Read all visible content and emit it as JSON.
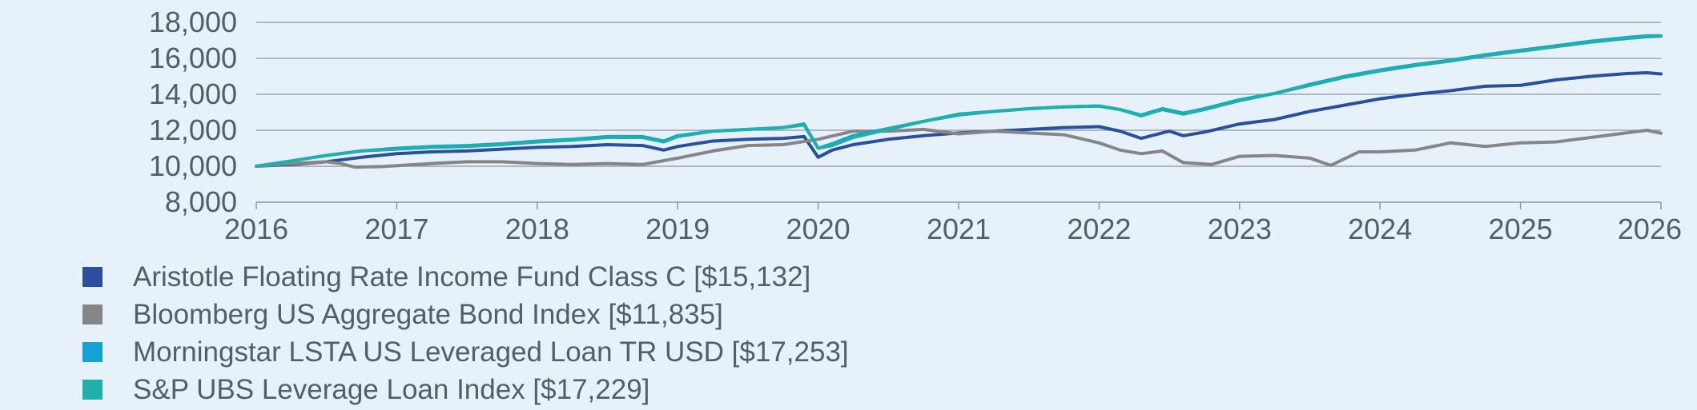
{
  "chart_data": {
    "type": "line",
    "title": "",
    "xlabel": "",
    "ylabel": "",
    "xlim": [
      2016,
      2026
    ],
    "ylim": [
      8000,
      18000
    ],
    "grid": true,
    "legend_position": "bottom",
    "x_ticks": [
      2016,
      2017,
      2018,
      2019,
      2020,
      2021,
      2022,
      2023,
      2024,
      2025,
      2026
    ],
    "x_tick_labels": [
      "2016",
      "2017",
      "2018",
      "2019",
      "2020",
      "2021",
      "2022",
      "2023",
      "2024",
      "2025",
      "2026"
    ],
    "y_ticks": [
      8000,
      10000,
      12000,
      14000,
      16000,
      18000
    ],
    "y_tick_labels": [
      "8,000",
      "10,000",
      "12,000",
      "14,000",
      "16,000",
      "18,000"
    ],
    "series": [
      {
        "name": "Aristotle Floating Rate Income Fund Class C [$15,132]",
        "color": "#2a4f9e",
        "points": [
          [
            2016.0,
            10000
          ],
          [
            2016.25,
            10100
          ],
          [
            2016.5,
            10250
          ],
          [
            2016.75,
            10500
          ],
          [
            2017.0,
            10700
          ],
          [
            2017.25,
            10800
          ],
          [
            2017.5,
            10850
          ],
          [
            2017.75,
            10950
          ],
          [
            2018.0,
            11050
          ],
          [
            2018.25,
            11100
          ],
          [
            2018.5,
            11200
          ],
          [
            2018.75,
            11150
          ],
          [
            2018.9,
            10900
          ],
          [
            2019.0,
            11100
          ],
          [
            2019.25,
            11400
          ],
          [
            2019.5,
            11500
          ],
          [
            2019.75,
            11550
          ],
          [
            2019.9,
            11650
          ],
          [
            2020.0,
            10500
          ],
          [
            2020.1,
            10900
          ],
          [
            2020.25,
            11200
          ],
          [
            2020.5,
            11500
          ],
          [
            2020.75,
            11700
          ],
          [
            2021.0,
            11850
          ],
          [
            2021.25,
            11950
          ],
          [
            2021.5,
            12050
          ],
          [
            2021.75,
            12150
          ],
          [
            2022.0,
            12200
          ],
          [
            2022.15,
            11950
          ],
          [
            2022.3,
            11550
          ],
          [
            2022.5,
            11950
          ],
          [
            2022.6,
            11700
          ],
          [
            2022.75,
            11900
          ],
          [
            2023.0,
            12350
          ],
          [
            2023.25,
            12600
          ],
          [
            2023.5,
            13050
          ],
          [
            2023.75,
            13400
          ],
          [
            2024.0,
            13750
          ],
          [
            2024.25,
            14000
          ],
          [
            2024.5,
            14200
          ],
          [
            2024.75,
            14450
          ],
          [
            2025.0,
            14500
          ],
          [
            2025.25,
            14800
          ],
          [
            2025.5,
            15000
          ],
          [
            2025.75,
            15150
          ],
          [
            2025.9,
            15200
          ],
          [
            2026.0,
            15132
          ]
        ]
      },
      {
        "name": "Bloomberg US Aggregate Bond Index [$11,835]",
        "color": "#868686",
        "points": [
          [
            2016.0,
            10000
          ],
          [
            2016.25,
            10150
          ],
          [
            2016.5,
            10250
          ],
          [
            2016.6,
            10150
          ],
          [
            2016.7,
            9950
          ],
          [
            2016.9,
            9980
          ],
          [
            2017.25,
            10150
          ],
          [
            2017.5,
            10250
          ],
          [
            2017.75,
            10250
          ],
          [
            2018.0,
            10150
          ],
          [
            2018.25,
            10100
          ],
          [
            2018.5,
            10150
          ],
          [
            2018.75,
            10100
          ],
          [
            2019.0,
            10450
          ],
          [
            2019.25,
            10850
          ],
          [
            2019.5,
            11150
          ],
          [
            2019.75,
            11200
          ],
          [
            2020.0,
            11500
          ],
          [
            2020.25,
            11950
          ],
          [
            2020.5,
            11950
          ],
          [
            2020.75,
            12050
          ],
          [
            2021.0,
            11800
          ],
          [
            2021.25,
            11950
          ],
          [
            2021.5,
            11850
          ],
          [
            2021.75,
            11750
          ],
          [
            2022.0,
            11300
          ],
          [
            2022.15,
            10900
          ],
          [
            2022.3,
            10700
          ],
          [
            2022.45,
            10850
          ],
          [
            2022.6,
            10200
          ],
          [
            2022.8,
            10100
          ],
          [
            2023.0,
            10550
          ],
          [
            2023.25,
            10600
          ],
          [
            2023.5,
            10450
          ],
          [
            2023.65,
            10050
          ],
          [
            2023.85,
            10800
          ],
          [
            2024.0,
            10800
          ],
          [
            2024.25,
            10900
          ],
          [
            2024.5,
            11300
          ],
          [
            2024.75,
            11100
          ],
          [
            2025.0,
            11300
          ],
          [
            2025.25,
            11350
          ],
          [
            2025.5,
            11600
          ],
          [
            2025.75,
            11850
          ],
          [
            2025.9,
            12000
          ],
          [
            2026.0,
            11835
          ]
        ]
      },
      {
        "name": "Morningstar LSTA US Leveraged Loan TR USD [$17,253]",
        "color": "#14a1d6",
        "points": [
          [
            2016.0,
            10000
          ],
          [
            2016.25,
            10300
          ],
          [
            2016.5,
            10600
          ],
          [
            2016.75,
            10850
          ],
          [
            2017.0,
            11000
          ],
          [
            2017.25,
            11100
          ],
          [
            2017.5,
            11150
          ],
          [
            2017.75,
            11250
          ],
          [
            2018.0,
            11400
          ],
          [
            2018.25,
            11500
          ],
          [
            2018.5,
            11650
          ],
          [
            2018.75,
            11650
          ],
          [
            2018.9,
            11400
          ],
          [
            2019.0,
            11700
          ],
          [
            2019.25,
            11950
          ],
          [
            2019.5,
            12050
          ],
          [
            2019.75,
            12150
          ],
          [
            2019.9,
            12350
          ],
          [
            2020.0,
            11000
          ],
          [
            2020.1,
            11250
          ],
          [
            2020.25,
            11700
          ],
          [
            2020.5,
            12100
          ],
          [
            2020.75,
            12500
          ],
          [
            2021.0,
            12850
          ],
          [
            2021.25,
            13050
          ],
          [
            2021.5,
            13200
          ],
          [
            2021.75,
            13300
          ],
          [
            2022.0,
            13350
          ],
          [
            2022.15,
            13150
          ],
          [
            2022.3,
            12850
          ],
          [
            2022.45,
            13200
          ],
          [
            2022.6,
            12950
          ],
          [
            2022.75,
            13200
          ],
          [
            2023.0,
            13700
          ],
          [
            2023.25,
            14050
          ],
          [
            2023.5,
            14550
          ],
          [
            2023.75,
            15000
          ],
          [
            2024.0,
            15350
          ],
          [
            2024.25,
            15650
          ],
          [
            2024.5,
            15900
          ],
          [
            2024.75,
            16200
          ],
          [
            2025.0,
            16450
          ],
          [
            2025.25,
            16700
          ],
          [
            2025.5,
            16950
          ],
          [
            2025.75,
            17150
          ],
          [
            2025.9,
            17250
          ],
          [
            2026.0,
            17253
          ]
        ]
      },
      {
        "name": "S&P UBS Leverage Loan Index [$17,229]",
        "color": "#1fb0ae",
        "points": [
          [
            2016.0,
            10000
          ],
          [
            2016.25,
            10300
          ],
          [
            2016.5,
            10600
          ],
          [
            2016.75,
            10850
          ],
          [
            2017.0,
            10950
          ],
          [
            2017.25,
            11050
          ],
          [
            2017.5,
            11100
          ],
          [
            2017.75,
            11200
          ],
          [
            2018.0,
            11350
          ],
          [
            2018.25,
            11450
          ],
          [
            2018.5,
            11600
          ],
          [
            2018.75,
            11600
          ],
          [
            2018.9,
            11350
          ],
          [
            2019.0,
            11650
          ],
          [
            2019.25,
            11950
          ],
          [
            2019.5,
            12050
          ],
          [
            2019.75,
            12150
          ],
          [
            2019.9,
            12300
          ],
          [
            2020.0,
            11000
          ],
          [
            2020.1,
            11150
          ],
          [
            2020.25,
            11600
          ],
          [
            2020.5,
            12050
          ],
          [
            2020.75,
            12500
          ],
          [
            2021.0,
            12900
          ],
          [
            2021.25,
            13050
          ],
          [
            2021.5,
            13200
          ],
          [
            2021.75,
            13300
          ],
          [
            2022.0,
            13350
          ],
          [
            2022.15,
            13150
          ],
          [
            2022.3,
            12800
          ],
          [
            2022.45,
            13150
          ],
          [
            2022.6,
            12900
          ],
          [
            2022.75,
            13150
          ],
          [
            2023.0,
            13650
          ],
          [
            2023.25,
            14050
          ],
          [
            2023.5,
            14500
          ],
          [
            2023.75,
            14950
          ],
          [
            2024.0,
            15300
          ],
          [
            2024.25,
            15600
          ],
          [
            2024.5,
            15850
          ],
          [
            2024.75,
            16150
          ],
          [
            2025.0,
            16400
          ],
          [
            2025.25,
            16650
          ],
          [
            2025.5,
            16900
          ],
          [
            2025.75,
            17100
          ],
          [
            2025.9,
            17200
          ],
          [
            2026.0,
            17229
          ]
        ]
      }
    ]
  },
  "legend": {
    "items": [
      {
        "label": "Aristotle Floating Rate Income Fund Class C [$15,132]",
        "color": "#2a4f9e"
      },
      {
        "label": "Bloomberg US Aggregate Bond Index [$11,835]",
        "color": "#868686"
      },
      {
        "label": "Morningstar LSTA US Leveraged Loan TR USD [$17,253]",
        "color": "#14a1d6"
      },
      {
        "label": "S&P UBS Leverage Loan Index [$17,229]",
        "color": "#1fb0ae"
      }
    ]
  }
}
